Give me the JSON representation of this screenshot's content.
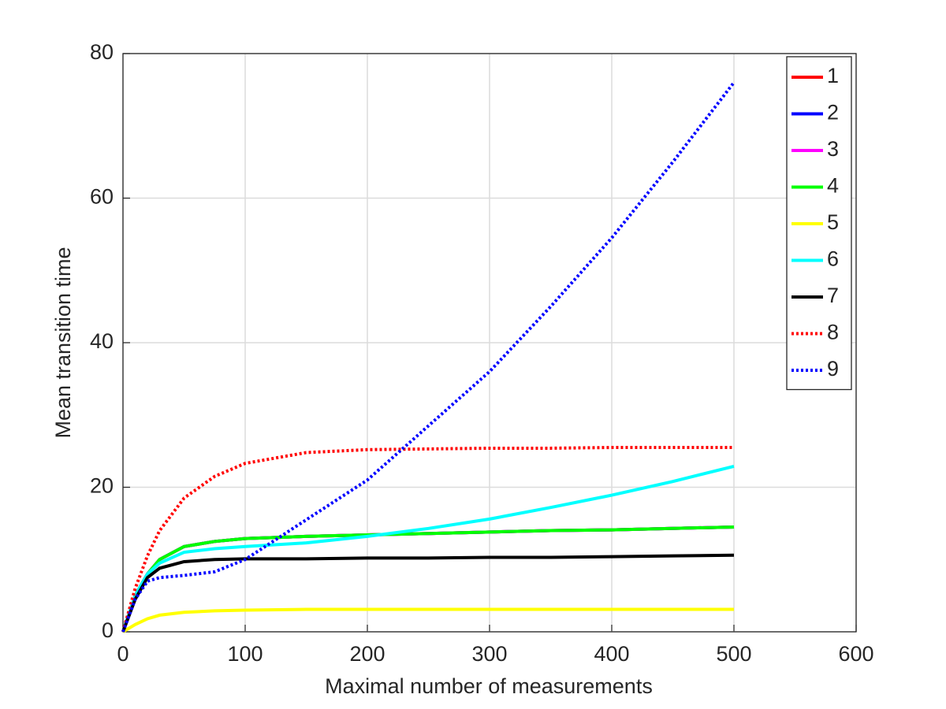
{
  "chart_data": {
    "type": "line",
    "x_label": "Maximal number of measurements",
    "y_label": "Mean transition time",
    "x": [
      0,
      10,
      20,
      30,
      50,
      75,
      100,
      150,
      200,
      250,
      300,
      350,
      400,
      450,
      500
    ],
    "series": [
      {
        "name": "1",
        "color": "#ff0000",
        "line_style": "solid",
        "values": [
          0,
          5,
          8,
          10,
          11.8,
          12.5,
          12.9,
          13.2,
          13.4,
          13.6,
          13.8,
          14,
          14.1,
          14.3,
          14.5
        ]
      },
      {
        "name": "2",
        "color": "#0000ff",
        "line_style": "solid",
        "values": [
          0,
          5,
          8,
          10,
          11.8,
          12.5,
          12.9,
          13.2,
          13.4,
          13.6,
          13.8,
          14,
          14.1,
          14.3,
          14.5
        ]
      },
      {
        "name": "3",
        "color": "#ff00ff",
        "line_style": "solid",
        "values": [
          0,
          5,
          8,
          10,
          11.8,
          12.5,
          12.9,
          13.2,
          13.4,
          13.6,
          13.8,
          14,
          14.1,
          14.3,
          14.5
        ]
      },
      {
        "name": "4",
        "color": "#00ff00",
        "line_style": "solid",
        "values": [
          0,
          5,
          8,
          10,
          11.8,
          12.5,
          12.9,
          13.2,
          13.4,
          13.6,
          13.8,
          14,
          14.1,
          14.3,
          14.5
        ]
      },
      {
        "name": "5",
        "color": "#ffff00",
        "line_style": "solid",
        "values": [
          0,
          1,
          1.8,
          2.3,
          2.7,
          2.9,
          3,
          3.1,
          3.1,
          3.1,
          3.1,
          3.1,
          3.1,
          3.1,
          3.1
        ]
      },
      {
        "name": "6",
        "color": "#00ffff",
        "line_style": "solid",
        "values": [
          0,
          5,
          8,
          9.5,
          11,
          11.5,
          11.8,
          12.3,
          13.2,
          14.3,
          15.6,
          17.2,
          18.9,
          20.8,
          22.9
        ]
      },
      {
        "name": "7",
        "color": "#000000",
        "line_style": "solid",
        "values": [
          0,
          4.5,
          7.5,
          8.8,
          9.7,
          10,
          10.1,
          10.1,
          10.2,
          10.2,
          10.3,
          10.3,
          10.4,
          10.5,
          10.6
        ]
      },
      {
        "name": "8",
        "color": "#ff0000",
        "line_style": "dotted",
        "values": [
          0,
          6,
          10.5,
          14,
          18.5,
          21.5,
          23.3,
          24.8,
          25.2,
          25.3,
          25.4,
          25.4,
          25.5,
          25.5,
          25.5
        ]
      },
      {
        "name": "9",
        "color": "#0000ff",
        "line_style": "dotted",
        "values": [
          0,
          4.5,
          7,
          7.5,
          7.8,
          8.3,
          10,
          15.5,
          21,
          28.5,
          36,
          45,
          54.5,
          65,
          76
        ]
      }
    ],
    "xlim": [
      0,
      600
    ],
    "xticks": [
      0,
      100,
      200,
      300,
      400,
      500,
      600
    ],
    "ylim": [
      0,
      80
    ],
    "yticks": [
      0,
      20,
      40,
      60,
      80
    ],
    "grid": true,
    "legend_position": "upper right"
  }
}
